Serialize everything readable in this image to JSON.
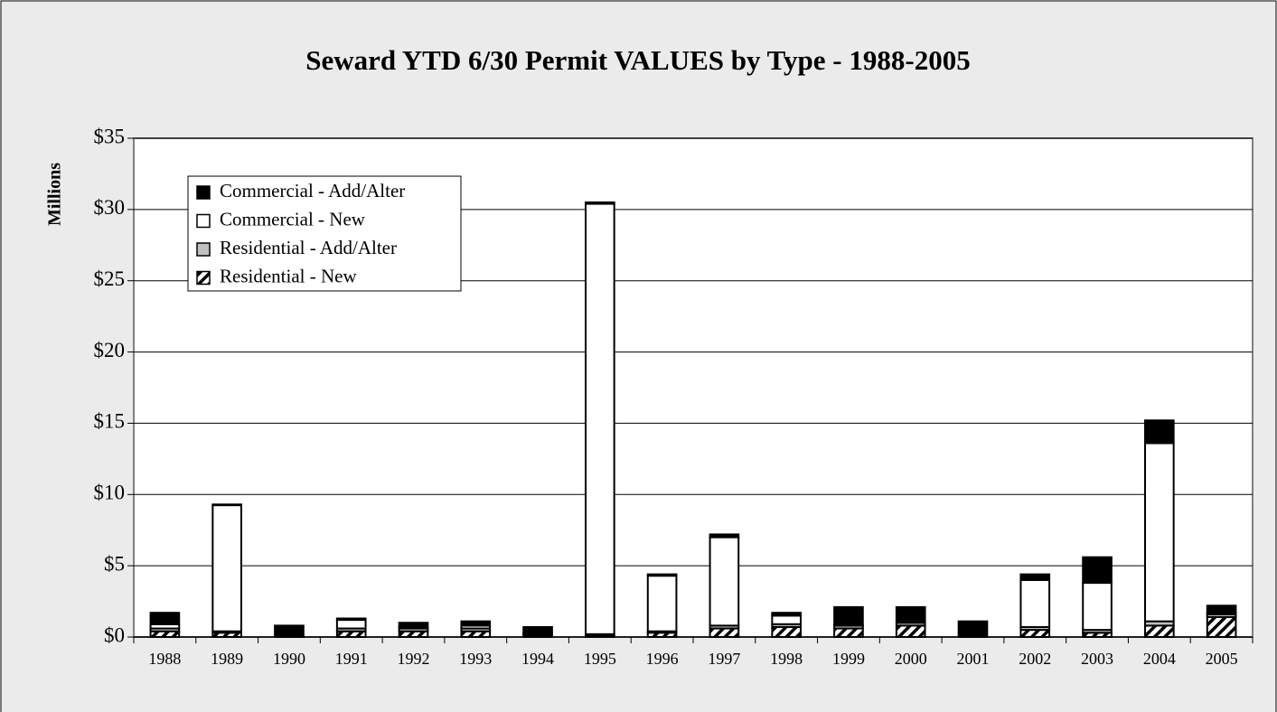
{
  "chart_data": {
    "type": "bar",
    "stacked": true,
    "title": "Seward YTD 6/30 Permit VALUES by Type - 1988-2005",
    "ylabel": "Millions",
    "categories": [
      "1988",
      "1989",
      "1990",
      "1991",
      "1992",
      "1993",
      "1994",
      "1995",
      "1996",
      "1997",
      "1998",
      "1999",
      "2000",
      "2001",
      "2002",
      "2003",
      "2004",
      "2005"
    ],
    "series": [
      {
        "name": "Residential - New",
        "color": "#ffffff",
        "pattern": "hatch",
        "values": [
          0.4,
          0.3,
          0.05,
          0.4,
          0.4,
          0.4,
          0.1,
          0.1,
          0.3,
          0.6,
          0.7,
          0.6,
          0.8,
          0,
          0.5,
          0.3,
          0.8,
          1.4
        ]
      },
      {
        "name": "Residential - Add/Alter",
        "color": "#c0c0c0",
        "values": [
          0.2,
          0.1,
          0.05,
          0.2,
          0.2,
          0.2,
          0.1,
          0.1,
          0.1,
          0.2,
          0.2,
          0.2,
          0.2,
          0,
          0.2,
          0.2,
          0.3,
          0.2
        ]
      },
      {
        "name": "Commercial - New",
        "color": "#ffffff",
        "values": [
          0.3,
          8.85,
          0,
          0.6,
          0.1,
          0.2,
          0.1,
          30.2,
          3.9,
          6.2,
          0.6,
          0.1,
          0.1,
          0,
          3.3,
          3.3,
          12.5,
          0.1
        ]
      },
      {
        "name": "Commercial - Add/Alter",
        "color": "#000000",
        "values": [
          0.8,
          0.05,
          0.7,
          0.1,
          0.3,
          0.3,
          0.4,
          0.1,
          0.1,
          0.2,
          0.2,
          1.2,
          1.0,
          1.1,
          0.4,
          1.8,
          1.6,
          0.5
        ]
      }
    ],
    "ylim": [
      0,
      35
    ],
    "yticks": [
      {
        "value": 0,
        "label": "$0"
      },
      {
        "value": 5,
        "label": "$5"
      },
      {
        "value": 10,
        "label": "$10"
      },
      {
        "value": 15,
        "label": "$15"
      },
      {
        "value": 20,
        "label": "$20"
      },
      {
        "value": 25,
        "label": "$25"
      },
      {
        "value": 30,
        "label": "$30"
      },
      {
        "value": 35,
        "label": "$35"
      }
    ],
    "grid": true,
    "legend": "upper left"
  }
}
